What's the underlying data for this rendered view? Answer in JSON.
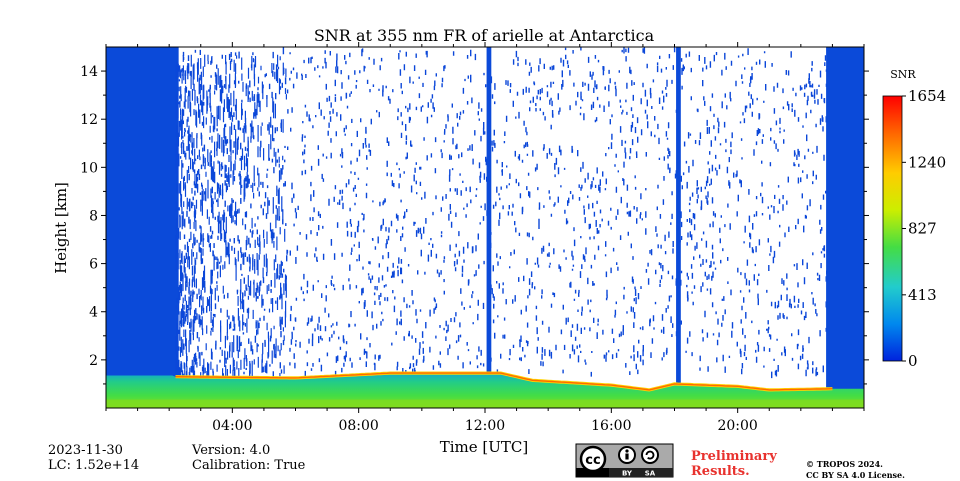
{
  "chart_data": {
    "type": "heatmap",
    "title": "SNR at 355 nm FR of arielle at Antarctica",
    "xlabel": "Time [UTC]",
    "ylabel": "Height [km]",
    "x_unit": "hour",
    "xlim": [
      0,
      24
    ],
    "ylim": [
      0,
      15
    ],
    "x_ticks": [
      {
        "value": 4,
        "label": "04:00"
      },
      {
        "value": 8,
        "label": "08:00"
      },
      {
        "value": 12,
        "label": "12:00"
      },
      {
        "value": 16,
        "label": "16:00"
      },
      {
        "value": 20,
        "label": "20:00"
      }
    ],
    "y_ticks": [
      {
        "value": 2,
        "label": "2"
      },
      {
        "value": 4,
        "label": "4"
      },
      {
        "value": 6,
        "label": "6"
      },
      {
        "value": 8,
        "label": "8"
      },
      {
        "value": 10,
        "label": "10"
      },
      {
        "value": 12,
        "label": "12"
      },
      {
        "value": 14,
        "label": "14"
      }
    ],
    "colorbar": {
      "label": "SNR",
      "min": 0,
      "max": 1654,
      "ticks": [
        {
          "value": 0,
          "label": "0"
        },
        {
          "value": 413,
          "label": "413"
        },
        {
          "value": 827,
          "label": "827"
        },
        {
          "value": 1240,
          "label": "1240"
        },
        {
          "value": 1654,
          "label": "1654"
        }
      ],
      "colors": [
        "#0022dd",
        "#0088ee",
        "#22cccc",
        "#44dd44",
        "#ccee00",
        "#ffcc00",
        "#ff6600",
        "#ff0000"
      ]
    },
    "features": {
      "boundary_layer_top_km": [
        {
          "t": 2.2,
          "h": 1.3
        },
        {
          "t": 6.0,
          "h": 1.25
        },
        {
          "t": 9.0,
          "h": 1.45
        },
        {
          "t": 12.5,
          "h": 1.45
        },
        {
          "t": 13.5,
          "h": 1.15
        },
        {
          "t": 16.0,
          "h": 0.95
        },
        {
          "t": 17.2,
          "h": 0.75
        },
        {
          "t": 18.0,
          "h": 1.0
        },
        {
          "t": 20.0,
          "h": 0.9
        },
        {
          "t": 21.0,
          "h": 0.75
        },
        {
          "t": 23.0,
          "h": 0.8
        }
      ],
      "full_column_bands_hours": [
        {
          "start": 0.0,
          "end": 2.3
        },
        {
          "start": 12.05,
          "end": 12.2
        },
        {
          "start": 18.05,
          "end": 18.2
        },
        {
          "start": 22.8,
          "end": 24.0
        }
      ]
    }
  },
  "footer": {
    "date": "2023-11-30",
    "lc": "LC: 1.52e+14",
    "version": "Version: 4.0",
    "calibration": "Calibration: True",
    "preliminary_line1": "Preliminary",
    "preliminary_line2": "Results.",
    "copyright_line1": "© TROPOS 2024.",
    "copyright_line2": "CC BY SA 4.0 License.",
    "license_badge": {
      "cc": "cc",
      "by": "BY",
      "sa": "SA"
    }
  }
}
